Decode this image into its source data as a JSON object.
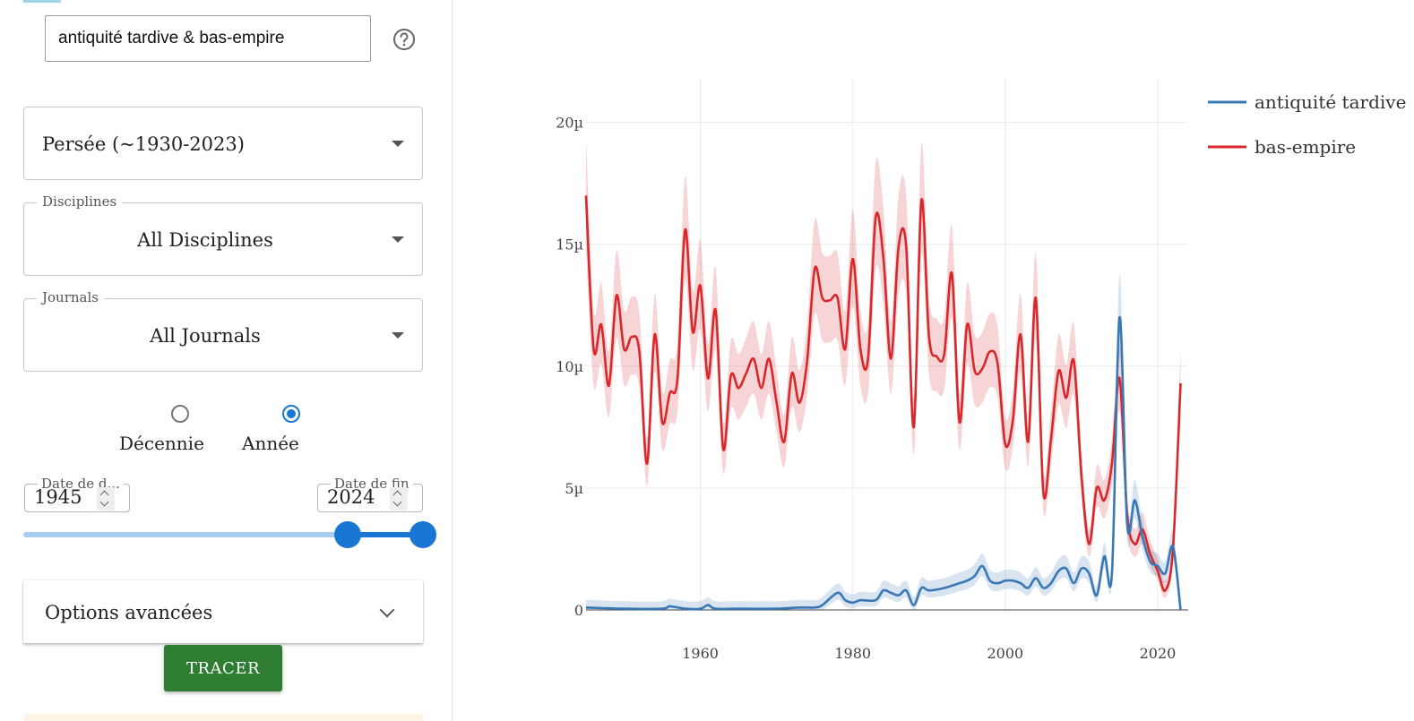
{
  "search": {
    "query": "antiquité tardive & bas-empire"
  },
  "corpus": {
    "selected": "Persée (~1930-2023)"
  },
  "disciplines": {
    "label": "Disciplines",
    "selected": "All Disciplines"
  },
  "journals": {
    "label": "Journals",
    "selected": "All Journals"
  },
  "granularity": {
    "options": [
      "Décennie",
      "Année"
    ],
    "selected": "Année"
  },
  "date_start": {
    "label": "Date de d...",
    "value": "1945"
  },
  "date_end": {
    "label": "Date de fin",
    "value": "2024"
  },
  "range": {
    "min": 1930,
    "max": 2024,
    "low": 1945,
    "high": 2024
  },
  "advanced": {
    "label": "Options avancées"
  },
  "submit": {
    "label": "TRACER"
  },
  "colors": {
    "primary": "#1976d2",
    "submit": "#2e7d32",
    "blue_series": "#3a78b5",
    "red_series": "#d9282b"
  },
  "chart_data": {
    "type": "line",
    "xlim": [
      1945,
      2024
    ],
    "ylim": [
      0,
      2.05e-05
    ],
    "x_ticks": [
      {
        "value": 1960,
        "label": "1960"
      },
      {
        "value": 1980,
        "label": "1980"
      },
      {
        "value": 2000,
        "label": "2000"
      },
      {
        "value": 2020,
        "label": "2020"
      }
    ],
    "y_ticks": [
      {
        "value": 0,
        "label": "0"
      },
      {
        "value": 5e-06,
        "label": "5µ"
      },
      {
        "value": 1e-05,
        "label": "10µ"
      },
      {
        "value": 1.5e-05,
        "label": "15µ"
      },
      {
        "value": 2e-05,
        "label": "20µ"
      }
    ],
    "legend_position": "top-right",
    "series": [
      {
        "name": "antiquité tardive",
        "color": "#3a78b5",
        "x": [
          1945,
          1950,
          1955,
          1956,
          1958,
          1960,
          1961,
          1962,
          1965,
          1970,
          1973,
          1975,
          1976,
          1978,
          1979,
          1980,
          1981,
          1983,
          1984,
          1985,
          1986,
          1987,
          1988,
          1989,
          1990,
          1992,
          1994,
          1995,
          1996,
          1997,
          1998,
          1999,
          2000,
          2001,
          2002,
          2003,
          2004,
          2005,
          2006,
          2007,
          2008,
          2009,
          2010,
          2011,
          2012,
          2013,
          2014,
          2015,
          2016,
          2017,
          2018,
          2019,
          2020,
          2021,
          2022,
          2023
        ],
        "y": [
          1e-07,
          5e-08,
          5e-08,
          1.5e-07,
          5e-08,
          5e-08,
          2e-07,
          5e-08,
          5e-08,
          5e-08,
          1e-07,
          1e-07,
          2e-07,
          7e-07,
          4e-07,
          3e-07,
          4e-07,
          4e-07,
          8e-07,
          7e-07,
          6e-07,
          8e-07,
          2e-07,
          9e-07,
          8e-07,
          9e-07,
          1.1e-06,
          1.2e-06,
          1.4e-06,
          1.8e-06,
          1.2e-06,
          1.1e-06,
          1.2e-06,
          1.2e-06,
          1.1e-06,
          9e-07,
          1.3e-06,
          9e-07,
          1.1e-06,
          1.6e-06,
          1.7e-06,
          1.1e-06,
          1.7e-06,
          1.5e-06,
          6e-07,
          2.2e-06,
          1.5e-06,
          1.2e-05,
          3.5e-06,
          4.5e-06,
          3e-06,
          2e-06,
          1.8e-06,
          1.5e-06,
          2.6e-06,
          0.0
        ]
      },
      {
        "name": "bas-empire",
        "color": "#d9282b",
        "x": [
          1945,
          1946,
          1947,
          1948,
          1949,
          1950,
          1951,
          1952,
          1953,
          1954,
          1955,
          1956,
          1957,
          1958,
          1959,
          1960,
          1961,
          1962,
          1963,
          1964,
          1965,
          1966,
          1967,
          1968,
          1969,
          1970,
          1971,
          1972,
          1973,
          1974,
          1975,
          1976,
          1977,
          1978,
          1979,
          1980,
          1981,
          1982,
          1983,
          1984,
          1985,
          1986,
          1987,
          1988,
          1989,
          1990,
          1991,
          1992,
          1993,
          1994,
          1995,
          1996,
          1997,
          1998,
          1999,
          2000,
          2001,
          2002,
          2003,
          2004,
          2005,
          2006,
          2007,
          2008,
          2009,
          2010,
          2011,
          2012,
          2013,
          2014,
          2015,
          2016,
          2017,
          2018,
          2019,
          2020,
          2021,
          2022,
          2023
        ],
        "y": [
          1.7e-05,
          1.07e-05,
          1.17e-05,
          9.2e-06,
          1.29e-05,
          1.07e-05,
          1.12e-05,
          1.06e-05,
          6e-06,
          1.13e-05,
          7.7e-06,
          8.9e-06,
          9.5e-06,
          1.56e-05,
          1.14e-05,
          1.33e-05,
          9.5e-06,
          1.23e-05,
          6.6e-06,
          9.6e-06,
          9.1e-06,
          9.7e-06,
          1.03e-05,
          9.1e-06,
          1.03e-05,
          8.5e-06,
          6.9e-06,
          9.7e-06,
          8.5e-06,
          1.02e-05,
          1.4e-05,
          1.28e-05,
          1.27e-05,
          1.28e-05,
          1.07e-05,
          1.44e-05,
          1.07e-05,
          1.03e-05,
          1.61e-05,
          1.45e-05,
          1.03e-05,
          1.49e-05,
          1.49e-05,
          7.5e-06,
          1.68e-05,
          1.12e-05,
          1.04e-05,
          1.05e-05,
          1.38e-05,
          7.7e-06,
          1.17e-05,
          9.8e-06,
          9.9e-06,
          1.06e-05,
          1.01e-05,
          6.8e-06,
          7.8e-06,
          1.13e-05,
          6.9e-06,
          1.28e-05,
          4.8e-06,
          7e-06,
          9.8e-06,
          8.7e-06,
          1.02e-05,
          5.5e-06,
          2.7e-06,
          5e-06,
          4.5e-06,
          6e-06,
          9.5e-06,
          3.9e-06,
          2.7e-06,
          3.3e-06,
          2.3e-06,
          1.6e-06,
          8e-07,
          2.5e-06,
          9.3e-06
        ]
      }
    ]
  }
}
